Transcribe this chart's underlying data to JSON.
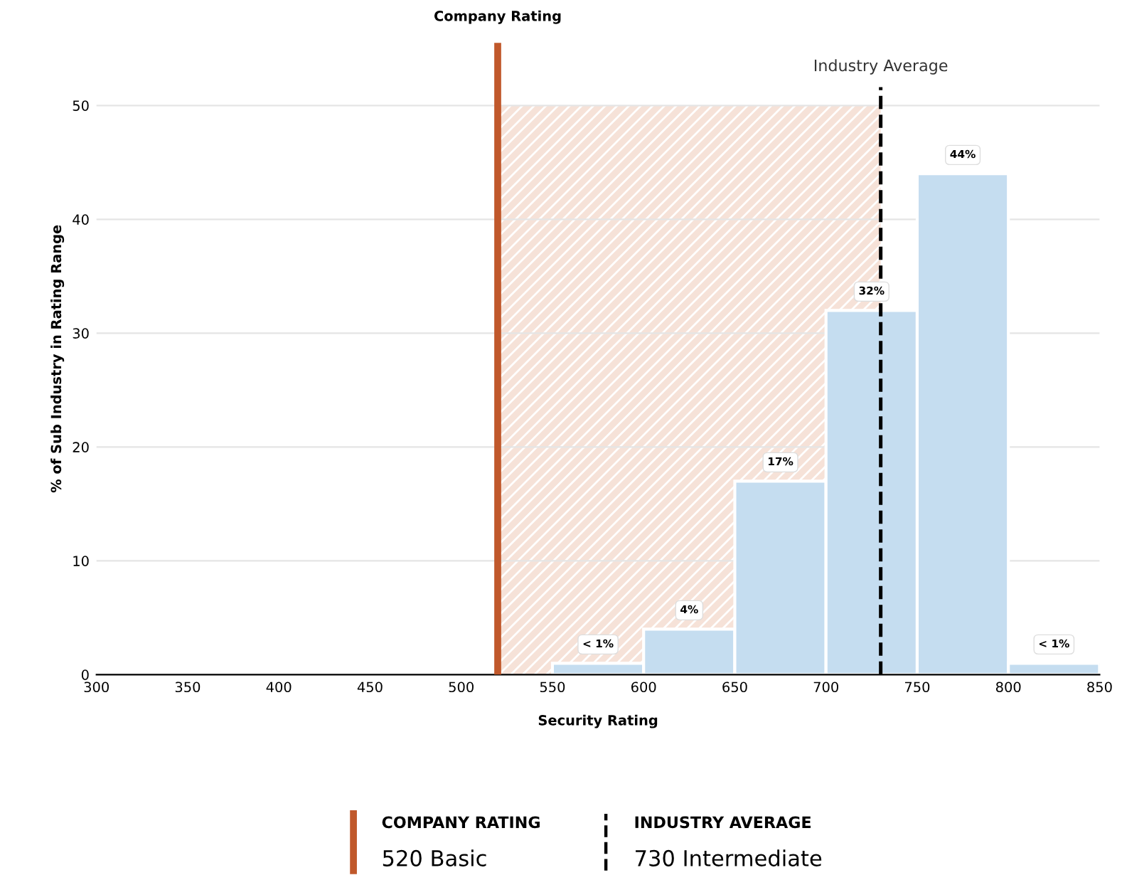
{
  "chart_data": {
    "type": "histogram",
    "xlabel": "Security Rating",
    "ylabel": "% of Sub Industry in Rating Range",
    "bins": [
      550,
      600,
      650,
      700,
      750,
      800,
      850
    ],
    "values": [
      1,
      4,
      17,
      32,
      44,
      1
    ],
    "color": "#c5ddf0",
    "value_labels": [
      "< 1%",
      "4%",
      "17%",
      "32%",
      "44%",
      "< 1%"
    ],
    "xlim": [
      300,
      850
    ],
    "xticks": [
      300,
      350,
      400,
      450,
      500,
      550,
      600,
      650,
      700,
      750,
      800,
      850
    ],
    "ylim": [
      0,
      55.5
    ],
    "yticks": [
      0,
      10,
      20,
      30,
      40,
      50
    ],
    "grid": "y",
    "ref_lines": [
      {
        "axis": "x",
        "value": 520,
        "label": "Company Rating",
        "color": "#c0582b",
        "line_style": "solid"
      },
      {
        "axis": "x",
        "value": 730,
        "label": "Industry Average",
        "color": "#000000",
        "line_style": "dashed"
      }
    ],
    "bands": [
      {
        "axis": "x",
        "from": 520,
        "to": 730,
        "color": "#f6e2d8"
      }
    ],
    "annotations": [
      "COMPANY RATING",
      "520 Basic",
      "INDUSTRY AVERAGE",
      "730 Intermediate"
    ]
  }
}
